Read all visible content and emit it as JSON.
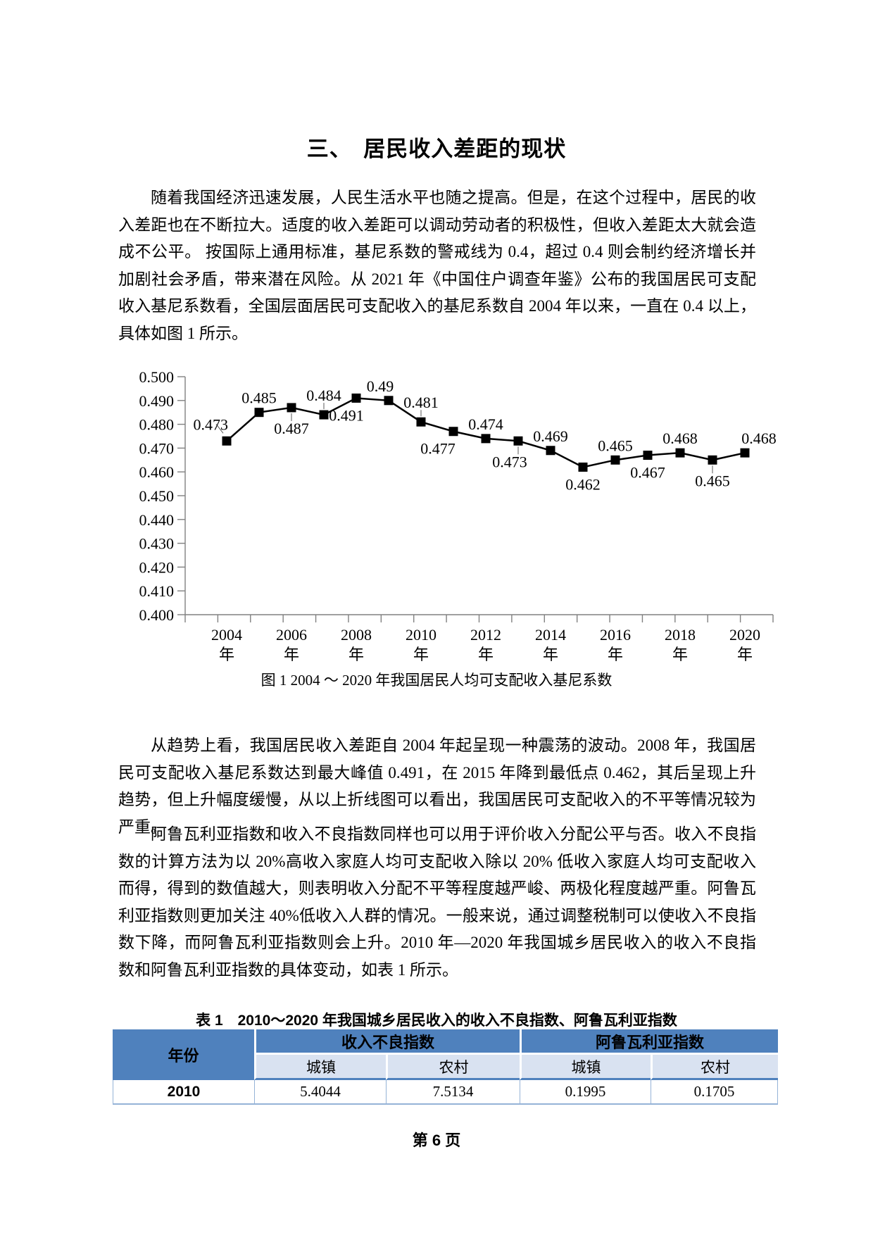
{
  "document": {
    "title": "三、　居民收入差距的现状"
  },
  "paragraphs": [
    "随着我国经济迅速发展，人民生活水平也随之提高。但是，在这个过程中，居民的收入差距也在不断拉大。适度的收入差距可以调动劳动者的积极性，但收入差距太大就会造成不公平。 按国际上通用标准，基尼系数的警戒线为 0.4，超过 0.4 则会制约经济增长并加剧社会矛盾，带来潜在风险。从 2021 年《中国住户调查年鉴》公布的我国居民可支配收入基尼系数看，全国层面居民可支配收入的基尼系数自 2004 年以来，一直在 0.4 以上，具体如图 1 所示。",
    "从趋势上看，我国居民收入差距自 2004 年起呈现一种震荡的波动。2008 年，我国居民可支配收入基尼系数达到最大峰值 0.491，在 2015 年降到最低点 0.462，其后呈现上升趋势，但上升幅度缓慢，从以上折线图可以看出，我国居民可支配收入的不平等情况较为严重。",
    "阿鲁瓦利亚指数和收入不良指数同样也可以用于评价收入分配公平与否。收入不良指数的计算方法为以 20%高收入家庭人均可支配收入除以 20% 低收入家庭人均可支配收入而得，得到的数值越大，则表明收入分配不平等程度越严峻、两极化程度越严重。阿鲁瓦利亚指数则更加关注 40%低收入人群的情况。一般来说，通过调整税制可以使收入不良指数下降，而阿鲁瓦利亚指数则会上升。2010 年—2020 年我国城乡居民收入的收入不良指数和阿鲁瓦利亚指数的具体变动，如表 1 所示。"
  ],
  "figure": {
    "caption": "图 1 2004 ～ 2020 年我国居民人均可支配收入基尼系数"
  },
  "chart_data": {
    "type": "line",
    "title": "",
    "x": [
      2004,
      2005,
      2006,
      2007,
      2008,
      2009,
      2010,
      2011,
      2012,
      2013,
      2014,
      2015,
      2016,
      2017,
      2018,
      2019,
      2020
    ],
    "values": [
      0.473,
      0.485,
      0.487,
      0.484,
      0.491,
      0.49,
      0.481,
      0.477,
      0.474,
      0.473,
      0.469,
      0.462,
      0.465,
      0.467,
      0.468,
      0.465,
      0.468
    ],
    "point_labels": [
      "0.473",
      "0.485",
      "0.487",
      "0.484",
      "0.491",
      "0.49",
      "0.481",
      "0.477",
      "0.474",
      "0.473",
      "0.469",
      "0.462",
      "0.465",
      "0.467",
      "0.468",
      "0.465",
      "0.468"
    ],
    "label_placements": [
      "left",
      "above",
      "below",
      "above",
      "below",
      "above",
      "above",
      "below",
      "above",
      "below",
      "above",
      "below",
      "above",
      "below",
      "above",
      "below",
      "above"
    ],
    "label_dx": {
      "4": -14,
      "5": -12,
      "7": -22,
      "9": -12,
      "16": 20
    },
    "leaders": [
      {
        "i": 0,
        "type": "diag"
      },
      {
        "i": 2,
        "type": "down"
      },
      {
        "i": 3,
        "type": "up"
      },
      {
        "i": 6,
        "type": "up"
      },
      {
        "i": 9,
        "type": "down"
      },
      {
        "i": 15,
        "type": "down"
      }
    ],
    "ylim": [
      0.4,
      0.5
    ],
    "ytick_labels": [
      "0.400",
      "0.410",
      "0.420",
      "0.430",
      "0.440",
      "0.450",
      "0.460",
      "0.470",
      "0.480",
      "0.490",
      "0.500"
    ],
    "xtick_labels": [
      "2004年",
      "2006年",
      "2008年",
      "2010年",
      "2012年",
      "2014年",
      "2016年",
      "2018年",
      "2020年"
    ],
    "xtick_suffix": "年",
    "grid": false,
    "legend": "none",
    "line_color": "#000000",
    "marker": "square",
    "axis_color": "#808080",
    "leader_color": "#595959"
  },
  "table": {
    "caption": "表 1　2010～2020 年我国城乡居民收入的收入不良指数、阿鲁瓦利亚指数",
    "year_header": "年份",
    "group_headers": [
      "收入不良指数",
      "阿鲁瓦利亚指数"
    ],
    "subheaders": [
      "城镇",
      "农村",
      "城镇",
      "农村"
    ],
    "rows": [
      {
        "year": "2010",
        "values": [
          "5.4044",
          "7.5134",
          "0.1995",
          "0.1705"
        ]
      }
    ],
    "header_bg": "#4F81BD",
    "subheader_bg": "#D9E2F1",
    "border_color": "#95B3D7"
  },
  "footer": {
    "page_label": "第 6 页"
  }
}
